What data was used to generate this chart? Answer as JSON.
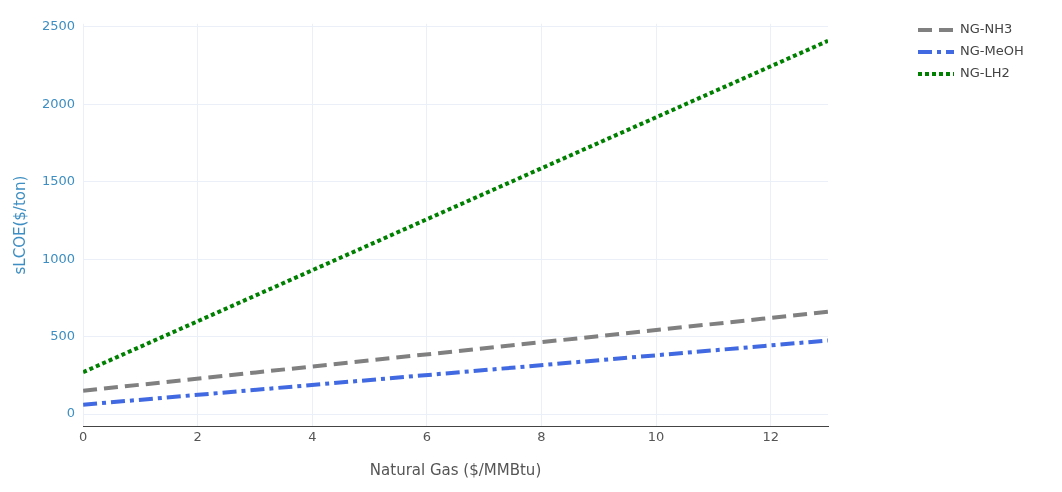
{
  "chart_data": {
    "type": "line",
    "xlabel": "Natural Gas ($/MMBtu)",
    "ylabel": "sLCOE($/ton)",
    "x": [
      0,
      13
    ],
    "series": [
      {
        "name": "NG-NH3",
        "color": "#808080",
        "line_style": "dashed",
        "values": [
          150,
          660
        ]
      },
      {
        "name": "NG-MeOH",
        "color": "#4169e1",
        "line_style": "dashdot",
        "values": [
          60,
          475
        ]
      },
      {
        "name": "NG-LH2",
        "color": "#008000",
        "line_style": "dotted",
        "values": [
          270,
          2410
        ]
      }
    ],
    "xlim": [
      0,
      13
    ],
    "xticks": [
      0,
      2,
      4,
      6,
      8,
      10,
      12
    ],
    "ylim": [
      -80,
      2520
    ],
    "yticks": [
      0,
      500,
      1000,
      1500,
      2000,
      2500
    ],
    "grid": true,
    "legend": "top right",
    "marker": "none"
  }
}
